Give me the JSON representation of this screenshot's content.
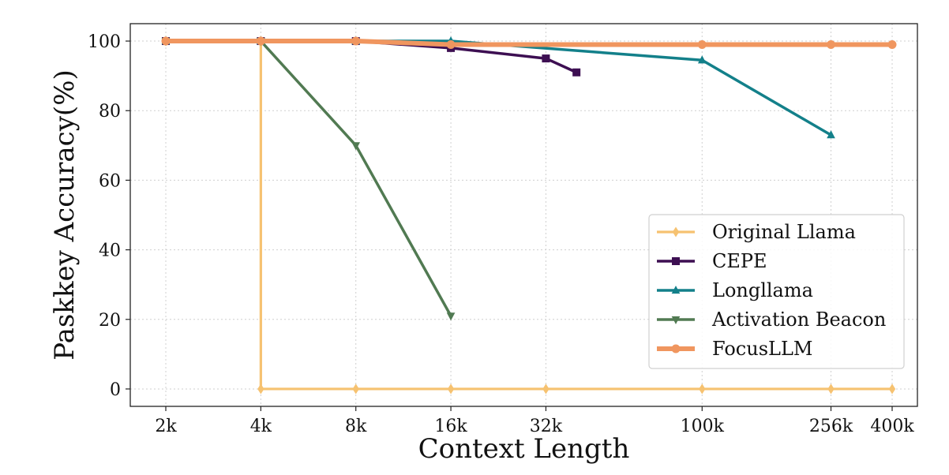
{
  "chart_data": {
    "type": "line",
    "xlabel": "Context Length",
    "ylabel": "Paskkey Accuracy(%)",
    "x_ticks": [
      "2k",
      "4k",
      "8k",
      "16k",
      "32k",
      "100k",
      "256k",
      "400k"
    ],
    "x_scale": "log",
    "ylim": [
      -5,
      105
    ],
    "y_ticks": [
      0,
      20,
      40,
      60,
      80,
      100
    ],
    "grid": true,
    "legend_position": "lower-right",
    "series": [
      {
        "name": "Original Llama",
        "color": "#f6c271",
        "marker": "diamond",
        "points": [
          {
            "x": "2k",
            "y": 100
          },
          {
            "x": "4k",
            "y": 100
          },
          {
            "x": "4k",
            "y": 0
          },
          {
            "x": "8k",
            "y": 0
          },
          {
            "x": "16k",
            "y": 0
          },
          {
            "x": "32k",
            "y": 0
          },
          {
            "x": "100k",
            "y": 0
          },
          {
            "x": "256k",
            "y": 0
          },
          {
            "x": "400k",
            "y": 0
          }
        ]
      },
      {
        "name": "CEPE",
        "color": "#3d0f52",
        "marker": "square",
        "points": [
          {
            "x": "2k",
            "y": 100
          },
          {
            "x": "4k",
            "y": 100
          },
          {
            "x": "8k",
            "y": 100
          },
          {
            "x": "16k",
            "y": 98
          },
          {
            "x": "32k",
            "y": 95
          },
          {
            "x": "40k",
            "y": 91
          }
        ]
      },
      {
        "name": "Longllama",
        "color": "#13808a",
        "marker": "triangle-up",
        "points": [
          {
            "x": "2k",
            "y": 100
          },
          {
            "x": "4k",
            "y": 100
          },
          {
            "x": "8k",
            "y": 100
          },
          {
            "x": "16k",
            "y": 100
          },
          {
            "x": "100k",
            "y": 94.5
          },
          {
            "x": "256k",
            "y": 73
          }
        ]
      },
      {
        "name": "Activation Beacon",
        "color": "#517a52",
        "marker": "triangle-down",
        "points": [
          {
            "x": "2k",
            "y": 100
          },
          {
            "x": "4k",
            "y": 100
          },
          {
            "x": "8k",
            "y": 70
          },
          {
            "x": "16k",
            "y": 21
          }
        ]
      },
      {
        "name": "FocusLLM",
        "color": "#f0965f",
        "marker": "circle",
        "points": [
          {
            "x": "2k",
            "y": 100
          },
          {
            "x": "4k",
            "y": 100
          },
          {
            "x": "8k",
            "y": 100
          },
          {
            "x": "16k",
            "y": 99
          },
          {
            "x": "100k",
            "y": 99
          },
          {
            "x": "256k",
            "y": 99
          },
          {
            "x": "400k",
            "y": 99
          }
        ]
      }
    ]
  }
}
